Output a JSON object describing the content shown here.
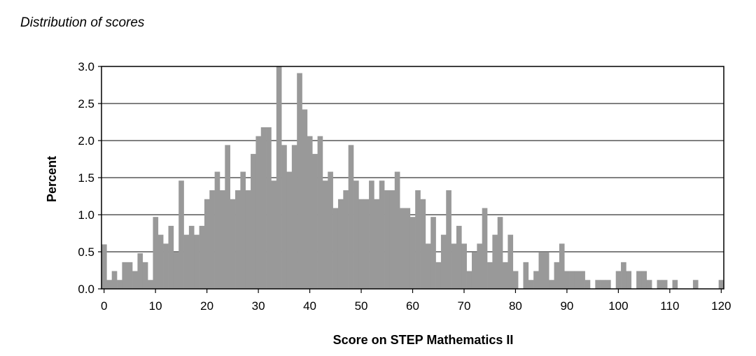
{
  "chart_data": {
    "type": "bar",
    "title": "Distribution of scores",
    "xlabel": "Score on STEP Mathematics II",
    "ylabel": "Percent",
    "xlim": [
      0,
      121
    ],
    "ylim": [
      0,
      3.0
    ],
    "x_ticks": [
      0,
      10,
      20,
      30,
      40,
      50,
      60,
      70,
      80,
      90,
      100,
      110,
      120
    ],
    "y_ticks": [
      "0.0",
      "0.5",
      "1.0",
      "1.5",
      "2.0",
      "2.5",
      "3.0"
    ],
    "grid": "horizontal",
    "bar_color": "#999999",
    "x": [
      0,
      1,
      2,
      3,
      4,
      5,
      6,
      7,
      8,
      9,
      10,
      11,
      12,
      13,
      14,
      15,
      16,
      17,
      18,
      19,
      20,
      21,
      22,
      23,
      24,
      25,
      26,
      27,
      28,
      29,
      30,
      31,
      32,
      33,
      34,
      35,
      36,
      37,
      38,
      39,
      40,
      41,
      42,
      43,
      44,
      45,
      46,
      47,
      48,
      49,
      50,
      51,
      52,
      53,
      54,
      55,
      56,
      57,
      58,
      59,
      60,
      61,
      62,
      63,
      64,
      65,
      66,
      67,
      68,
      69,
      70,
      71,
      72,
      73,
      74,
      75,
      76,
      77,
      78,
      79,
      80,
      81,
      82,
      83,
      84,
      85,
      86,
      87,
      88,
      89,
      90,
      91,
      92,
      93,
      94,
      95,
      96,
      97,
      98,
      99,
      100,
      101,
      102,
      103,
      104,
      105,
      106,
      107,
      108,
      109,
      110,
      111,
      112,
      113,
      114,
      115,
      116,
      117,
      118,
      119,
      120
    ],
    "values": [
      0.6,
      0.12,
      0.24,
      0.12,
      0.36,
      0.36,
      0.24,
      0.48,
      0.36,
      0.12,
      0.97,
      0.73,
      0.61,
      0.85,
      0.49,
      1.46,
      0.73,
      0.85,
      0.73,
      0.85,
      1.21,
      1.33,
      1.58,
      1.33,
      1.94,
      1.21,
      1.33,
      1.58,
      1.33,
      1.82,
      2.06,
      2.18,
      2.18,
      1.46,
      3.0,
      1.94,
      1.58,
      1.94,
      2.91,
      2.42,
      2.06,
      1.82,
      2.06,
      1.46,
      1.58,
      1.09,
      1.21,
      1.33,
      1.94,
      1.46,
      1.21,
      1.21,
      1.46,
      1.21,
      1.46,
      1.33,
      1.33,
      1.58,
      1.09,
      1.09,
      0.97,
      1.33,
      1.21,
      0.61,
      0.97,
      0.36,
      0.73,
      1.33,
      0.61,
      0.85,
      0.61,
      0.24,
      0.49,
      0.61,
      1.09,
      0.36,
      0.73,
      0.97,
      0.36,
      0.73,
      0.24,
      0.0,
      0.36,
      0.12,
      0.24,
      0.49,
      0.49,
      0.12,
      0.36,
      0.61,
      0.24,
      0.24,
      0.24,
      0.24,
      0.12,
      0.0,
      0.12,
      0.12,
      0.12,
      0.0,
      0.24,
      0.36,
      0.24,
      0.0,
      0.24,
      0.24,
      0.12,
      0.0,
      0.12,
      0.12,
      0.0,
      0.12,
      0.0,
      0.0,
      0.0,
      0.12,
      0.0,
      0.0,
      0.0,
      0.0,
      0.12
    ]
  }
}
